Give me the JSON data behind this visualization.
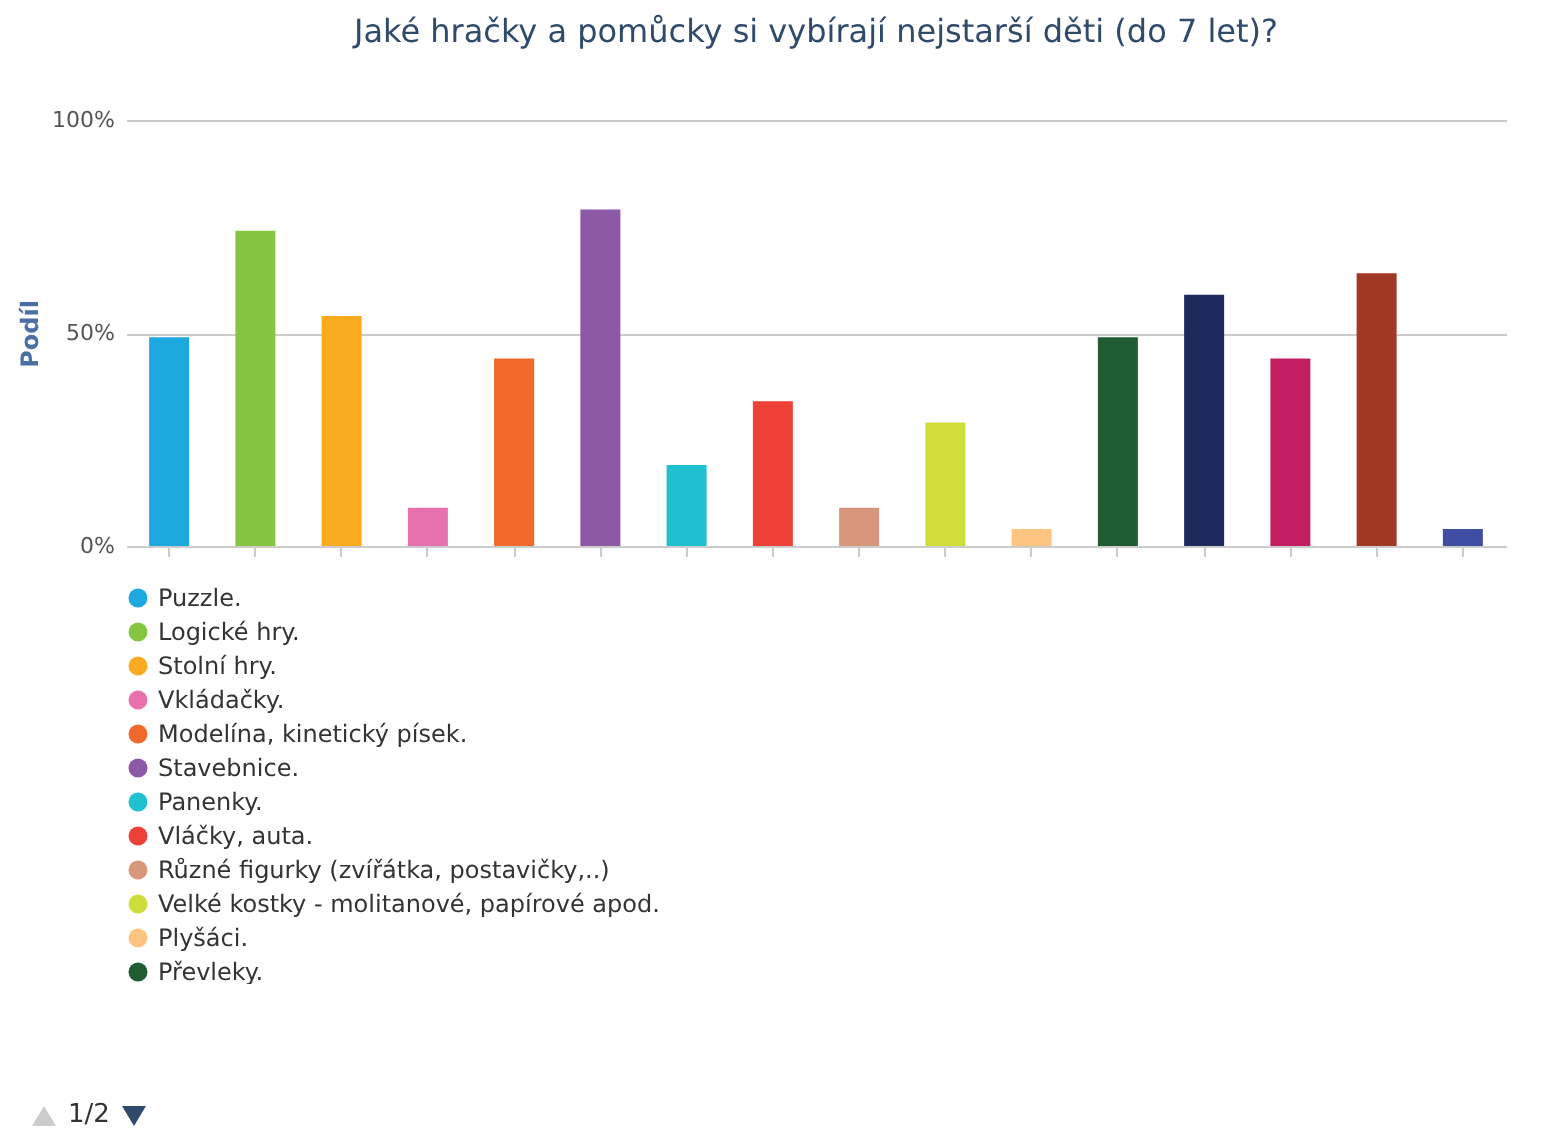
{
  "chart_data": {
    "type": "bar",
    "title": "Jaké hračky a pomůcky si vybírají nejstarší děti (do 7 let)?",
    "ylabel": "Podíl",
    "categories": [
      null,
      null,
      null,
      null,
      null,
      null,
      null,
      null,
      null,
      null,
      null,
      null,
      null,
      null,
      null,
      null
    ],
    "ylim": [
      0,
      100
    ],
    "yticks": [
      {
        "value": 0,
        "label": "0%"
      },
      {
        "value": 50,
        "label": "50%"
      },
      {
        "value": 100,
        "label": "100%"
      }
    ],
    "grid": "y",
    "legend": "bottom left",
    "annotations": [
      "1/2"
    ],
    "series": [
      {
        "name": "Puzzle.",
        "color": "#1ea8e0",
        "values": [
          49,
          null,
          null,
          null,
          null,
          null,
          null,
          null,
          null,
          null,
          null,
          null,
          null,
          null,
          null,
          null
        ]
      },
      {
        "name": "Logické hry.",
        "color": "#86c540",
        "values": [
          null,
          74,
          null,
          null,
          null,
          null,
          null,
          null,
          null,
          null,
          null,
          null,
          null,
          null,
          null,
          null
        ]
      },
      {
        "name": "Stolní hry.",
        "color": "#fbab20",
        "values": [
          null,
          null,
          54,
          null,
          null,
          null,
          null,
          null,
          null,
          null,
          null,
          null,
          null,
          null,
          null,
          null
        ]
      },
      {
        "name": "Vkládačky.",
        "color": "#e771ac",
        "values": [
          null,
          null,
          null,
          9,
          null,
          null,
          null,
          null,
          null,
          null,
          null,
          null,
          null,
          null,
          null,
          null
        ]
      },
      {
        "name": "Modelína, kinetický písek.",
        "color": "#f0682a",
        "values": [
          null,
          null,
          null,
          null,
          44,
          null,
          null,
          null,
          null,
          null,
          null,
          null,
          null,
          null,
          null,
          null
        ]
      },
      {
        "name": "Stavebnice.",
        "color": "#8d58a6",
        "values": [
          null,
          null,
          null,
          null,
          null,
          79,
          null,
          null,
          null,
          null,
          null,
          null,
          null,
          null,
          null,
          null
        ]
      },
      {
        "name": "Panenky.",
        "color": "#1fc0d0",
        "values": [
          null,
          null,
          null,
          null,
          null,
          null,
          19,
          null,
          null,
          null,
          null,
          null,
          null,
          null,
          null,
          null
        ]
      },
      {
        "name": "Vláčky, auta.",
        "color": "#ed4137",
        "values": [
          null,
          null,
          null,
          null,
          null,
          null,
          null,
          34,
          null,
          null,
          null,
          null,
          null,
          null,
          null,
          null
        ]
      },
      {
        "name": "Různé figurky (zvířátka, postavičky,..)",
        "color": "#d8977a",
        "values": [
          null,
          null,
          null,
          null,
          null,
          null,
          null,
          null,
          9,
          null,
          null,
          null,
          null,
          null,
          null,
          null
        ]
      },
      {
        "name": "Velké kostky - molitanové, papírové apod.",
        "color": "#cfdd38",
        "values": [
          null,
          null,
          null,
          null,
          null,
          null,
          null,
          null,
          null,
          29,
          null,
          null,
          null,
          null,
          null,
          null
        ]
      },
      {
        "name": "Plyšáci.",
        "color": "#fdc57f",
        "values": [
          null,
          null,
          null,
          null,
          null,
          null,
          null,
          null,
          null,
          null,
          4,
          null,
          null,
          null,
          null,
          null
        ]
      },
      {
        "name": "Převleky.",
        "color": "#1f5c30",
        "values": [
          null,
          null,
          null,
          null,
          null,
          null,
          null,
          null,
          null,
          null,
          null,
          49,
          null,
          null,
          null,
          null
        ]
      },
      {
        "color": "#1f2a5c",
        "values": [
          null,
          null,
          null,
          null,
          null,
          null,
          null,
          null,
          null,
          null,
          null,
          null,
          59,
          null,
          null,
          null
        ]
      },
      {
        "color": "#c21f63",
        "values": [
          null,
          null,
          null,
          null,
          null,
          null,
          null,
          null,
          null,
          null,
          null,
          null,
          null,
          44,
          null,
          null
        ]
      },
      {
        "color": "#a03826",
        "values": [
          null,
          null,
          null,
          null,
          null,
          null,
          null,
          null,
          null,
          null,
          null,
          null,
          null,
          null,
          64,
          null
        ]
      },
      {
        "color": "#3f4ea3",
        "values": [
          null,
          null,
          null,
          null,
          null,
          null,
          null,
          null,
          null,
          null,
          null,
          null,
          null,
          null,
          null,
          4
        ]
      }
    ]
  }
}
